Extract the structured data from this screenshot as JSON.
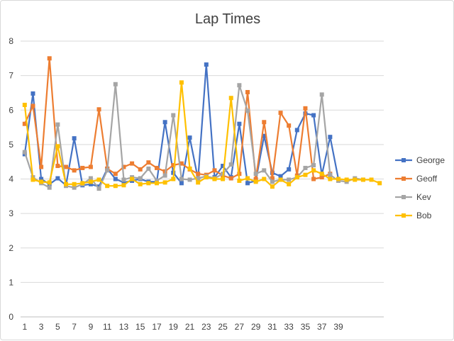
{
  "chart_data": {
    "type": "line",
    "title": "Lap Times",
    "xlabel": "",
    "ylabel": "",
    "ylim": [
      0,
      8
    ],
    "y_ticks": [
      "0",
      "1",
      "2",
      "3",
      "4",
      "5",
      "6",
      "7",
      "8"
    ],
    "x_tick_labels": [
      "1",
      "3",
      "5",
      "7",
      "9",
      "11",
      "13",
      "15",
      "17",
      "19",
      "21",
      "23",
      "25",
      "27",
      "29",
      "31",
      "33",
      "35",
      "37",
      "39"
    ],
    "x": [
      1,
      2,
      3,
      4,
      5,
      6,
      7,
      8,
      9,
      10,
      11,
      12,
      13,
      14,
      15,
      16,
      17,
      18,
      19,
      20,
      21,
      22,
      23,
      24,
      25,
      26,
      27,
      28,
      29,
      30,
      31,
      32,
      33,
      34,
      35,
      36,
      37,
      38,
      39,
      40,
      41,
      42,
      43,
      44
    ],
    "grid": true,
    "legend_position": "right",
    "series": [
      {
        "name": "George",
        "color": "#4472c4",
        "values": [
          4.72,
          6.48,
          4.0,
          3.85,
          4.02,
          3.82,
          5.18,
          3.82,
          3.85,
          3.78,
          4.3,
          4.0,
          3.9,
          3.95,
          4.0,
          3.92,
          3.92,
          5.65,
          4.18,
          3.88,
          5.2,
          4.0,
          7.32,
          4.05,
          4.38,
          4.05,
          5.6,
          3.88,
          3.95,
          5.25,
          4.18,
          4.08,
          4.28,
          5.42,
          5.9,
          5.85,
          4.12,
          5.22,
          4.0,
          null,
          null,
          null,
          null,
          null
        ]
      },
      {
        "name": "Geoff",
        "color": "#ed7d31",
        "values": [
          5.6,
          6.12,
          4.35,
          7.5,
          4.38,
          4.35,
          4.25,
          4.32,
          4.35,
          6.02,
          4.3,
          4.15,
          4.35,
          4.45,
          4.28,
          4.48,
          4.32,
          4.22,
          4.4,
          4.45,
          4.28,
          4.15,
          4.12,
          4.25,
          4.1,
          4.02,
          4.15,
          6.52,
          4.0,
          5.65,
          4.02,
          5.92,
          5.55,
          4.1,
          6.05,
          4.0,
          4.05,
          4.15,
          null,
          null,
          null,
          null,
          null,
          null
        ]
      },
      {
        "name": "Kev",
        "color": "#a5a5a5",
        "values": [
          4.78,
          4.05,
          3.88,
          3.75,
          5.58,
          3.8,
          3.75,
          3.85,
          4.02,
          3.72,
          4.25,
          6.75,
          3.98,
          4.05,
          4.02,
          4.3,
          3.95,
          4.1,
          5.85,
          4.0,
          3.98,
          4.02,
          4.08,
          4.02,
          4.15,
          4.42,
          6.72,
          5.98,
          4.15,
          4.25,
          3.92,
          3.98,
          3.98,
          4.05,
          4.32,
          4.4,
          6.45,
          4.12,
          3.95,
          3.92,
          4.02,
          3.98,
          null,
          null
        ]
      },
      {
        "name": "Bob",
        "color": "#ffc000",
        "values": [
          6.15,
          3.98,
          3.92,
          3.9,
          4.95,
          3.85,
          3.85,
          3.88,
          3.92,
          3.98,
          3.8,
          3.8,
          3.82,
          4.0,
          3.85,
          3.88,
          3.88,
          3.9,
          4.0,
          6.8,
          4.3,
          3.9,
          4.05,
          4.0,
          4.0,
          6.35,
          3.95,
          4.02,
          3.92,
          4.0,
          3.78,
          3.98,
          3.85,
          4.05,
          4.12,
          4.25,
          4.15,
          4.0,
          4.0,
          3.98,
          3.98,
          3.98,
          3.98,
          3.88
        ]
      }
    ]
  }
}
